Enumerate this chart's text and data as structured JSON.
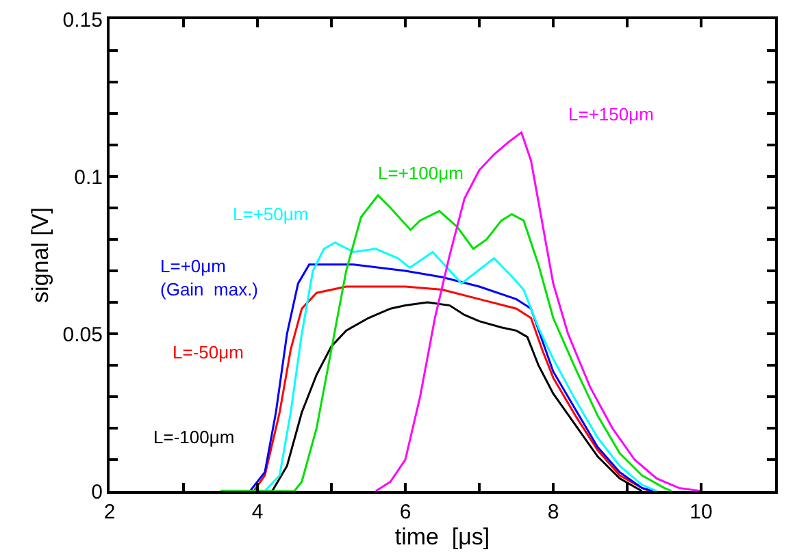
{
  "chart_data": {
    "type": "line",
    "xlabel": "time  [μs]",
    "ylabel": "signal [V]",
    "xlim": [
      2,
      11
    ],
    "xticks": [
      2,
      {
        "value": 3,
        "label": null
      },
      4,
      {
        "value": 5,
        "label": null
      },
      6,
      {
        "value": 7,
        "label": null
      },
      8,
      {
        "value": 9,
        "label": null
      },
      10,
      {
        "value": 11,
        "label": null
      }
    ],
    "ylim": [
      0,
      0.15
    ],
    "yticks": [
      0,
      {
        "value": 0.01,
        "label": null
      },
      {
        "value": 0.02,
        "label": null
      },
      {
        "value": 0.03,
        "label": null
      },
      {
        "value": 0.04,
        "label": null
      },
      0.05,
      {
        "value": 0.06,
        "label": null
      },
      {
        "value": 0.07,
        "label": null
      },
      {
        "value": 0.08,
        "label": null
      },
      {
        "value": 0.09,
        "label": null
      },
      0.1,
      {
        "value": 0.11,
        "label": null
      },
      {
        "value": 0.12,
        "label": null
      },
      {
        "value": 0.13,
        "label": null
      },
      {
        "value": 0.14,
        "label": null
      },
      0.15
    ],
    "grid": false,
    "legend": false,
    "marker": "none",
    "line_style": "solid",
    "series": [
      {
        "name": "L=-100μm",
        "color": "#000000",
        "x": [
          3.5,
          4.2,
          4.4,
          4.6,
          4.8,
          5.0,
          5.2,
          5.5,
          5.8,
          6.0,
          6.3,
          6.6,
          6.8,
          7.0,
          7.3,
          7.5,
          7.65,
          7.8,
          8.0,
          8.3,
          8.6,
          8.9,
          9.2
        ],
        "values": [
          0,
          0,
          0.008,
          0.025,
          0.037,
          0.046,
          0.051,
          0.055,
          0.058,
          0.059,
          0.06,
          0.059,
          0.056,
          0.054,
          0.052,
          0.051,
          0.049,
          0.04,
          0.031,
          0.021,
          0.011,
          0.004,
          0
        ]
      },
      {
        "name": "L=-50μm",
        "color": "#ff0000",
        "x": [
          3.5,
          3.95,
          4.1,
          4.3,
          4.45,
          4.6,
          4.8,
          5.2,
          6.0,
          6.5,
          7.0,
          7.5,
          7.7,
          7.85,
          8.0,
          8.3,
          8.6,
          8.9,
          9.2,
          9.3
        ],
        "values": [
          0,
          0,
          0.005,
          0.025,
          0.045,
          0.058,
          0.063,
          0.065,
          0.065,
          0.064,
          0.061,
          0.058,
          0.055,
          0.045,
          0.036,
          0.024,
          0.013,
          0.005,
          0.001,
          0
        ]
      },
      {
        "name": "L=+0μm\n(Gain  max.)",
        "color": "#0000ff",
        "x": [
          3.5,
          3.9,
          4.1,
          4.25,
          4.4,
          4.55,
          4.7,
          5.0,
          5.3,
          6.0,
          6.5,
          7.0,
          7.5,
          7.7,
          7.85,
          8.0,
          8.3,
          8.6,
          8.9,
          9.2,
          9.35
        ],
        "values": [
          0,
          0,
          0.006,
          0.025,
          0.05,
          0.066,
          0.072,
          0.072,
          0.072,
          0.07,
          0.068,
          0.065,
          0.061,
          0.058,
          0.048,
          0.038,
          0.026,
          0.014,
          0.006,
          0.001,
          0
        ]
      },
      {
        "name": "L=+50μm",
        "color": "#00ffff",
        "x": [
          3.5,
          4.1,
          4.3,
          4.45,
          4.6,
          4.75,
          4.9,
          5.05,
          5.3,
          5.6,
          5.9,
          6.06,
          6.37,
          6.76,
          7.2,
          7.45,
          7.6,
          7.8,
          8.0,
          8.3,
          8.6,
          8.9,
          9.2,
          9.4
        ],
        "values": [
          0,
          0,
          0.005,
          0.025,
          0.05,
          0.07,
          0.077,
          0.079,
          0.076,
          0.077,
          0.074,
          0.071,
          0.076,
          0.066,
          0.074,
          0.068,
          0.064,
          0.052,
          0.042,
          0.029,
          0.017,
          0.008,
          0.002,
          0
        ]
      },
      {
        "name": "L=+100μm",
        "color": "#00e000",
        "x": [
          3.5,
          4.5,
          4.6,
          4.8,
          5.0,
          5.2,
          5.4,
          5.63,
          5.8,
          6.07,
          6.2,
          6.46,
          6.7,
          6.92,
          7.1,
          7.3,
          7.44,
          7.6,
          7.8,
          8.0,
          8.3,
          8.6,
          8.9,
          9.2,
          9.5,
          9.6
        ],
        "values": [
          0,
          0,
          0.003,
          0.02,
          0.045,
          0.07,
          0.087,
          0.094,
          0.09,
          0.083,
          0.086,
          0.089,
          0.084,
          0.077,
          0.08,
          0.086,
          0.088,
          0.086,
          0.072,
          0.055,
          0.039,
          0.024,
          0.012,
          0.005,
          0.001,
          0
        ]
      },
      {
        "name": "L=+150μm",
        "color": "#ff00ff",
        "x": [
          5.6,
          5.8,
          6.0,
          6.2,
          6.4,
          6.6,
          6.8,
          7.0,
          7.2,
          7.4,
          7.57,
          7.7,
          7.8,
          8.0,
          8.2,
          8.5,
          8.8,
          9.1,
          9.4,
          9.7,
          10.0
        ],
        "values": [
          0,
          0.003,
          0.01,
          0.03,
          0.055,
          0.075,
          0.093,
          0.102,
          0.107,
          0.111,
          0.114,
          0.105,
          0.092,
          0.066,
          0.05,
          0.033,
          0.02,
          0.01,
          0.004,
          0.001,
          0
        ]
      }
    ]
  }
}
